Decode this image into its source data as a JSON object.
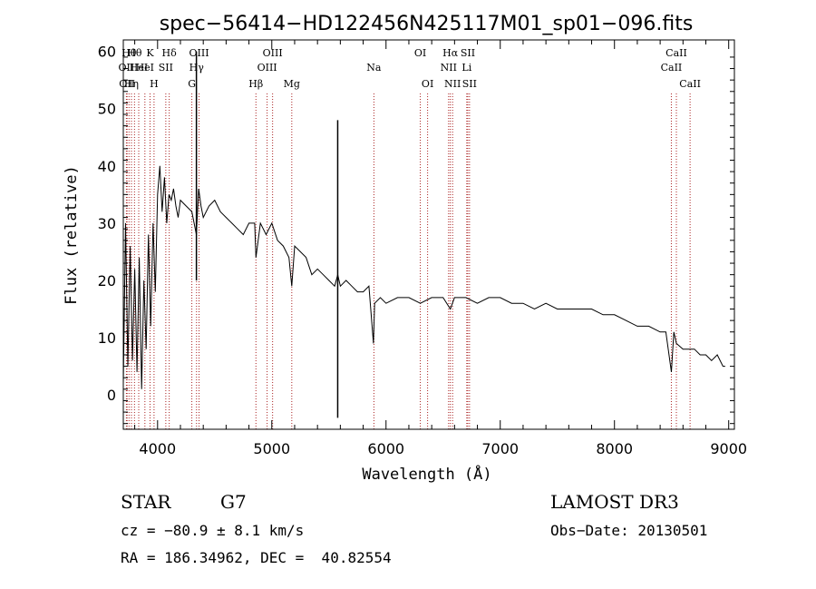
{
  "chart_data": {
    "type": "line",
    "title": "spec−56414−HD122456N425117M01_sp01−096.fits",
    "xlabel": "Wavelength (Å)",
    "ylabel": "Flux (relative)",
    "xlim": [
      3700,
      9050
    ],
    "ylim": [
      -6,
      62
    ],
    "xticks": [
      4000,
      5000,
      6000,
      7000,
      8000,
      9000
    ],
    "xtick_labels": [
      "4000",
      "5000",
      "6000",
      "7000",
      "8000",
      "9000"
    ],
    "yticks": [
      0,
      10,
      20,
      30,
      40,
      50,
      60
    ],
    "ytick_labels": [
      "0",
      "10",
      "20",
      "30",
      "40",
      "50",
      "60"
    ],
    "grid": false,
    "line_color": "#000000",
    "marker_color": "#aa2222",
    "series": [
      {
        "name": "spectrum",
        "x": [
          3700,
          3720,
          3740,
          3760,
          3780,
          3800,
          3820,
          3840,
          3860,
          3880,
          3900,
          3920,
          3940,
          3960,
          3980,
          4000,
          4020,
          4040,
          4060,
          4080,
          4100,
          4120,
          4140,
          4160,
          4180,
          4200,
          4250,
          4300,
          4340,
          4360,
          4380,
          4400,
          4450,
          4500,
          4550,
          4600,
          4650,
          4700,
          4750,
          4800,
          4850,
          4861,
          4900,
          4950,
          5000,
          5050,
          5100,
          5150,
          5175,
          5200,
          5250,
          5300,
          5350,
          5400,
          5450,
          5500,
          5550,
          5577,
          5600,
          5650,
          5700,
          5750,
          5800,
          5850,
          5890,
          5900,
          5950,
          6000,
          6100,
          6200,
          6300,
          6400,
          6500,
          6563,
          6600,
          6700,
          6800,
          6900,
          7000,
          7100,
          7200,
          7300,
          7400,
          7500,
          7600,
          7700,
          7800,
          7900,
          8000,
          8100,
          8200,
          8300,
          8400,
          8450,
          8498,
          8520,
          8542,
          8600,
          8662,
          8700,
          8750,
          8800,
          8850,
          8900,
          8950,
          8970
        ],
        "y": [
          2,
          30,
          5,
          26,
          6,
          22,
          4,
          24,
          1,
          20,
          8,
          28,
          12,
          30,
          18,
          35,
          40,
          32,
          38,
          30,
          35,
          34,
          36,
          33,
          31,
          34,
          33,
          32,
          28,
          36,
          33,
          31,
          33,
          34,
          32,
          31,
          30,
          29,
          28,
          30,
          30,
          24,
          30,
          28,
          30,
          27,
          26,
          24,
          19,
          26,
          25,
          24,
          21,
          22,
          21,
          20,
          19,
          21,
          19,
          20,
          19,
          18,
          18,
          19,
          9,
          16,
          17,
          16,
          17,
          17,
          16,
          17,
          17,
          15,
          17,
          17,
          16,
          17,
          17,
          16,
          16,
          15,
          16,
          15,
          15,
          15,
          15,
          14,
          14,
          13,
          12,
          12,
          11,
          11,
          4,
          11,
          9,
          8,
          8,
          8,
          7,
          7,
          6,
          7,
          5,
          5
        ]
      }
    ],
    "spike_lines": [
      {
        "x": 4340,
        "top": 60
      },
      {
        "x": 5577,
        "top": 48,
        "bottom": -4
      }
    ],
    "line_markers": [
      {
        "wl": 3727,
        "label": "OII",
        "row": 2
      },
      {
        "wl": 3733,
        "label": "OII",
        "row": 3
      },
      {
        "wl": 3750,
        "label": "Hθ",
        "row": 1
      },
      {
        "wl": 3771,
        "label": "Hη",
        "row": 3
      },
      {
        "wl": 3798,
        "label": "Hθ",
        "row": 1
      },
      {
        "wl": 3835,
        "label": "HeI",
        "row": 2
      },
      {
        "wl": 3889,
        "label": "HeI",
        "row": 2
      },
      {
        "wl": 3934,
        "label": "K",
        "row": 1
      },
      {
        "wl": 3969,
        "label": "H",
        "row": 3
      },
      {
        "wl": 4072,
        "label": "SII",
        "row": 2
      },
      {
        "wl": 4102,
        "label": "Hδ",
        "row": 1
      },
      {
        "wl": 4300,
        "label": "G",
        "row": 3
      },
      {
        "wl": 4341,
        "label": "Hγ",
        "row": 2
      },
      {
        "wl": 4363,
        "label": "OIII",
        "row": 1
      },
      {
        "wl": 4861,
        "label": "Hβ",
        "row": 3
      },
      {
        "wl": 4959,
        "label": "OIII",
        "row": 2
      },
      {
        "wl": 5007,
        "label": "OIII",
        "row": 1
      },
      {
        "wl": 5175,
        "label": "Mg",
        "row": 3
      },
      {
        "wl": 5894,
        "label": "Na",
        "row": 2
      },
      {
        "wl": 6300,
        "label": "OI",
        "row": 1
      },
      {
        "wl": 6364,
        "label": "OI",
        "row": 3
      },
      {
        "wl": 6548,
        "label": "NII",
        "row": 2
      },
      {
        "wl": 6563,
        "label": "Hα",
        "row": 1
      },
      {
        "wl": 6583,
        "label": "NII",
        "row": 3
      },
      {
        "wl": 6707,
        "label": "Li",
        "row": 2
      },
      {
        "wl": 6716,
        "label": "SII",
        "row": 1
      },
      {
        "wl": 6731,
        "label": "SII",
        "row": 3
      },
      {
        "wl": 8498,
        "label": "CaII",
        "row": 2
      },
      {
        "wl": 8542,
        "label": "CaII",
        "row": 1
      },
      {
        "wl": 8662,
        "label": "CaII",
        "row": 3
      }
    ]
  },
  "info": {
    "object_class": "STAR",
    "subclass": "G7",
    "survey": "LAMOST DR3",
    "redshift": "cz = −80.9 ± 8.1 km/s",
    "obs_date": "Obs−Date: 20130501",
    "coords": "RA = 186.34962, DEC =  40.82554"
  }
}
